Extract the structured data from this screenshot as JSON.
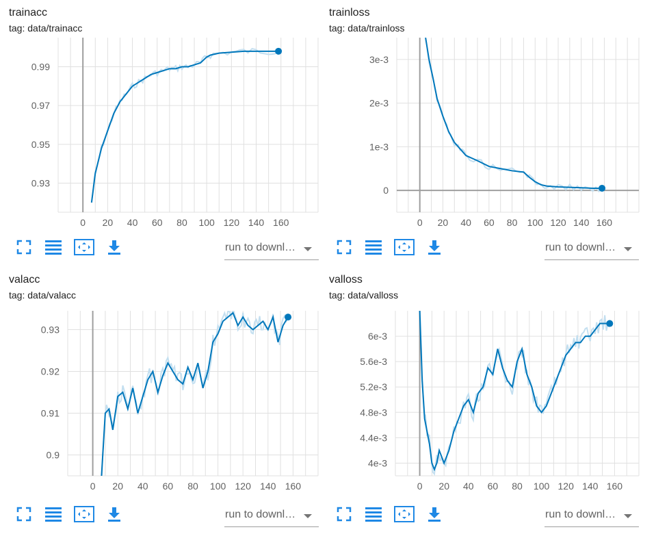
{
  "colors": {
    "line": "#0077bb",
    "raw": "#c3dff0",
    "grid": "#e0e0e0",
    "axis": "#9e9e9e",
    "icon": "#1e88e5"
  },
  "toolbar": {
    "icons": [
      "fullscreen-icon",
      "toggle-log-scale-icon",
      "fit-domain-icon",
      "download-icon"
    ],
    "download_label": "run to downl…"
  },
  "charts": [
    {
      "title": "trainacc",
      "tag": "tag: data/trainacc"
    },
    {
      "title": "trainloss",
      "tag": "tag: data/trainloss"
    },
    {
      "title": "valacc",
      "tag": "tag: data/valacc"
    },
    {
      "title": "valloss",
      "tag": "tag: data/valloss"
    }
  ],
  "chart_data": [
    {
      "type": "line",
      "title": "trainacc",
      "xlabel": "",
      "ylabel": "",
      "xlim": [
        -20,
        190
      ],
      "ylim": [
        0.915,
        1.005
      ],
      "xticks": [
        0,
        20,
        40,
        60,
        80,
        100,
        120,
        140,
        160
      ],
      "yticks": [
        0.93,
        0.95,
        0.97,
        0.99
      ],
      "ytick_labels": [
        "0.93",
        "0.95",
        "0.97",
        "0.99"
      ],
      "series": [
        {
          "x": [
            7,
            10,
            15,
            20,
            25,
            30,
            35,
            40,
            45,
            50,
            55,
            60,
            65,
            70,
            75,
            80,
            85,
            90,
            95,
            100,
            103,
            110,
            120,
            130,
            140,
            150,
            158
          ],
          "y": [
            0.92,
            0.935,
            0.948,
            0.957,
            0.966,
            0.972,
            0.976,
            0.98,
            0.982,
            0.984,
            0.986,
            0.987,
            0.988,
            0.989,
            0.989,
            0.99,
            0.99,
            0.991,
            0.992,
            0.995,
            0.996,
            0.997,
            0.9975,
            0.998,
            0.998,
            0.998,
            0.998
          ]
        }
      ]
    },
    {
      "type": "line",
      "title": "trainloss",
      "xlabel": "",
      "ylabel": "",
      "xlim": [
        -20,
        190
      ],
      "ylim": [
        -0.0005,
        0.0035
      ],
      "xticks": [
        0,
        20,
        40,
        60,
        80,
        100,
        120,
        140,
        160
      ],
      "yticks": [
        0,
        0.001,
        0.002,
        0.003
      ],
      "ytick_labels": [
        "0",
        "1e-3",
        "2e-3",
        "3e-3"
      ],
      "series": [
        {
          "x": [
            5,
            8,
            12,
            15,
            20,
            25,
            30,
            35,
            40,
            50,
            60,
            70,
            80,
            90,
            95,
            100,
            105,
            110,
            120,
            130,
            140,
            150,
            158
          ],
          "y": [
            0.0035,
            0.003,
            0.0025,
            0.0021,
            0.0017,
            0.00135,
            0.0011,
            0.00095,
            0.0008,
            0.00068,
            0.00055,
            0.0005,
            0.00045,
            0.00042,
            0.0003,
            0.0002,
            0.00013,
            0.0001,
            8e-05,
            7e-05,
            6e-05,
            5e-05,
            5e-05
          ]
        }
      ]
    },
    {
      "type": "line",
      "title": "valacc",
      "xlabel": "",
      "ylabel": "",
      "xlim": [
        -20,
        180
      ],
      "ylim": [
        0.895,
        0.9345
      ],
      "xticks": [
        0,
        20,
        40,
        60,
        80,
        100,
        120,
        140,
        160
      ],
      "yticks": [
        0.9,
        0.91,
        0.92,
        0.93
      ],
      "ytick_labels": [
        "0.9",
        "0.91",
        "0.92",
        "0.93"
      ],
      "series": [
        {
          "x": [
            7,
            10,
            13,
            16,
            20,
            24,
            28,
            32,
            36,
            40,
            44,
            48,
            52,
            56,
            60,
            64,
            68,
            72,
            76,
            80,
            84,
            88,
            92,
            96,
            100,
            104,
            108,
            112,
            116,
            120,
            124,
            128,
            132,
            136,
            140,
            144,
            148,
            152,
            156
          ],
          "y": [
            0.895,
            0.91,
            0.911,
            0.906,
            0.914,
            0.915,
            0.911,
            0.916,
            0.91,
            0.914,
            0.918,
            0.92,
            0.915,
            0.919,
            0.922,
            0.92,
            0.918,
            0.917,
            0.921,
            0.918,
            0.922,
            0.916,
            0.92,
            0.927,
            0.929,
            0.932,
            0.933,
            0.934,
            0.931,
            0.933,
            0.931,
            0.93,
            0.931,
            0.932,
            0.93,
            0.933,
            0.927,
            0.931,
            0.933
          ]
        }
      ]
    },
    {
      "type": "line",
      "title": "valloss",
      "xlabel": "",
      "ylabel": "",
      "xlim": [
        -20,
        180
      ],
      "ylim": [
        0.0038,
        0.0064
      ],
      "xticks": [
        0,
        20,
        40,
        60,
        80,
        100,
        120,
        140,
        160
      ],
      "yticks": [
        0.004,
        0.0044,
        0.0048,
        0.0052,
        0.0056,
        0.006
      ],
      "ytick_labels": [
        "4e-3",
        "4.4e-3",
        "4.8e-3",
        "5.2e-3",
        "5.6e-3",
        "6e-3"
      ],
      "series": [
        {
          "x": [
            0,
            2,
            4,
            6,
            8,
            10,
            12,
            14,
            16,
            18,
            20,
            24,
            28,
            32,
            36,
            40,
            44,
            48,
            52,
            56,
            60,
            64,
            68,
            72,
            76,
            80,
            84,
            88,
            92,
            96,
            100,
            104,
            108,
            112,
            116,
            120,
            124,
            128,
            132,
            136,
            140,
            144,
            148,
            152,
            156
          ],
          "y": [
            0.0064,
            0.0053,
            0.0047,
            0.0045,
            0.0043,
            0.004,
            0.0039,
            0.004,
            0.0042,
            0.0041,
            0.004,
            0.0042,
            0.0045,
            0.0047,
            0.0049,
            0.005,
            0.0048,
            0.0051,
            0.0052,
            0.0055,
            0.0054,
            0.0058,
            0.0055,
            0.0053,
            0.0052,
            0.0056,
            0.0058,
            0.0054,
            0.0052,
            0.0049,
            0.0048,
            0.0049,
            0.0051,
            0.0053,
            0.0055,
            0.0057,
            0.0058,
            0.0059,
            0.0059,
            0.006,
            0.006,
            0.0061,
            0.0062,
            0.0062,
            0.0062
          ]
        }
      ]
    }
  ]
}
